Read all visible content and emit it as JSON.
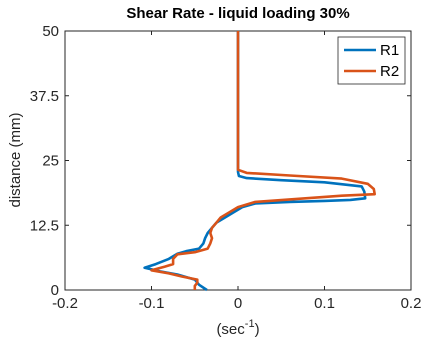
{
  "chart_data": {
    "type": "line",
    "title": "Shear Rate  - liquid loading 30%",
    "xlabel_base": "(sec",
    "xlabel_sup": "-1",
    "xlabel_end": ")",
    "ylabel": "distance (mm)",
    "xlim": [
      -0.2,
      0.2
    ],
    "ylim": [
      0,
      50
    ],
    "x_ticks": [
      -0.2,
      -0.1,
      0,
      0.1,
      0.2
    ],
    "x_tick_labels": [
      "-0.2",
      "-0.1",
      "0",
      "0.1",
      "0.2"
    ],
    "y_ticks": [
      0,
      12.5,
      25,
      37.5,
      50
    ],
    "y_tick_labels": [
      "0",
      "12.5",
      "25",
      "37.5",
      "50"
    ],
    "grid": false,
    "legend_position": "top-right",
    "series": [
      {
        "name": "R1",
        "color": "#0072BD",
        "points": [
          [
            -0.036,
            0
          ],
          [
            -0.045,
            1.0
          ],
          [
            -0.05,
            2.0
          ],
          [
            -0.07,
            3.0
          ],
          [
            -0.09,
            3.6
          ],
          [
            -0.108,
            4.3
          ],
          [
            -0.095,
            5.0
          ],
          [
            -0.08,
            6.0
          ],
          [
            -0.07,
            7.0
          ],
          [
            -0.06,
            7.5
          ],
          [
            -0.045,
            8.0
          ],
          [
            -0.04,
            9.0
          ],
          [
            -0.038,
            10.0
          ],
          [
            -0.035,
            11.0
          ],
          [
            -0.03,
            12.0
          ],
          [
            -0.025,
            13.0
          ],
          [
            -0.015,
            14.0
          ],
          [
            -0.005,
            15.0
          ],
          [
            0.005,
            16.0
          ],
          [
            0.02,
            16.7
          ],
          [
            0.06,
            17.0
          ],
          [
            0.1,
            17.2
          ],
          [
            0.13,
            17.4
          ],
          [
            0.147,
            17.7
          ],
          [
            0.146,
            19.0
          ],
          [
            0.143,
            20.0
          ],
          [
            0.1,
            20.8
          ],
          [
            0.05,
            21.2
          ],
          [
            0.01,
            21.6
          ],
          [
            0.001,
            22.0
          ],
          [
            0.0,
            22.8
          ],
          [
            0.0,
            30.0
          ],
          [
            0.0,
            40.0
          ],
          [
            0.0,
            50.0
          ]
        ]
      },
      {
        "name": "R2",
        "color": "#D95319",
        "points": [
          [
            -0.05,
            0
          ],
          [
            -0.05,
            0.8
          ],
          [
            -0.047,
            1.4
          ],
          [
            -0.047,
            2.0
          ],
          [
            -0.065,
            2.6
          ],
          [
            -0.08,
            3.2
          ],
          [
            -0.1,
            3.8
          ],
          [
            -0.085,
            4.5
          ],
          [
            -0.075,
            5.0
          ],
          [
            -0.075,
            6.0
          ],
          [
            -0.07,
            6.9
          ],
          [
            -0.05,
            7.3
          ],
          [
            -0.035,
            8.0
          ],
          [
            -0.032,
            9.0
          ],
          [
            -0.03,
            10.0
          ],
          [
            -0.032,
            11.0
          ],
          [
            -0.03,
            12.0
          ],
          [
            -0.025,
            13.0
          ],
          [
            -0.02,
            14.0
          ],
          [
            -0.01,
            15.0
          ],
          [
            0.0,
            16.0
          ],
          [
            0.02,
            17.0
          ],
          [
            0.07,
            17.6
          ],
          [
            0.12,
            18.2
          ],
          [
            0.158,
            18.5
          ],
          [
            0.157,
            19.5
          ],
          [
            0.15,
            20.5
          ],
          [
            0.12,
            21.5
          ],
          [
            0.06,
            22.1
          ],
          [
            0.01,
            22.6
          ],
          [
            0.0,
            23.2
          ],
          [
            0.0,
            30.0
          ],
          [
            0.0,
            40.0
          ],
          [
            0.0,
            50.0
          ]
        ]
      }
    ]
  }
}
